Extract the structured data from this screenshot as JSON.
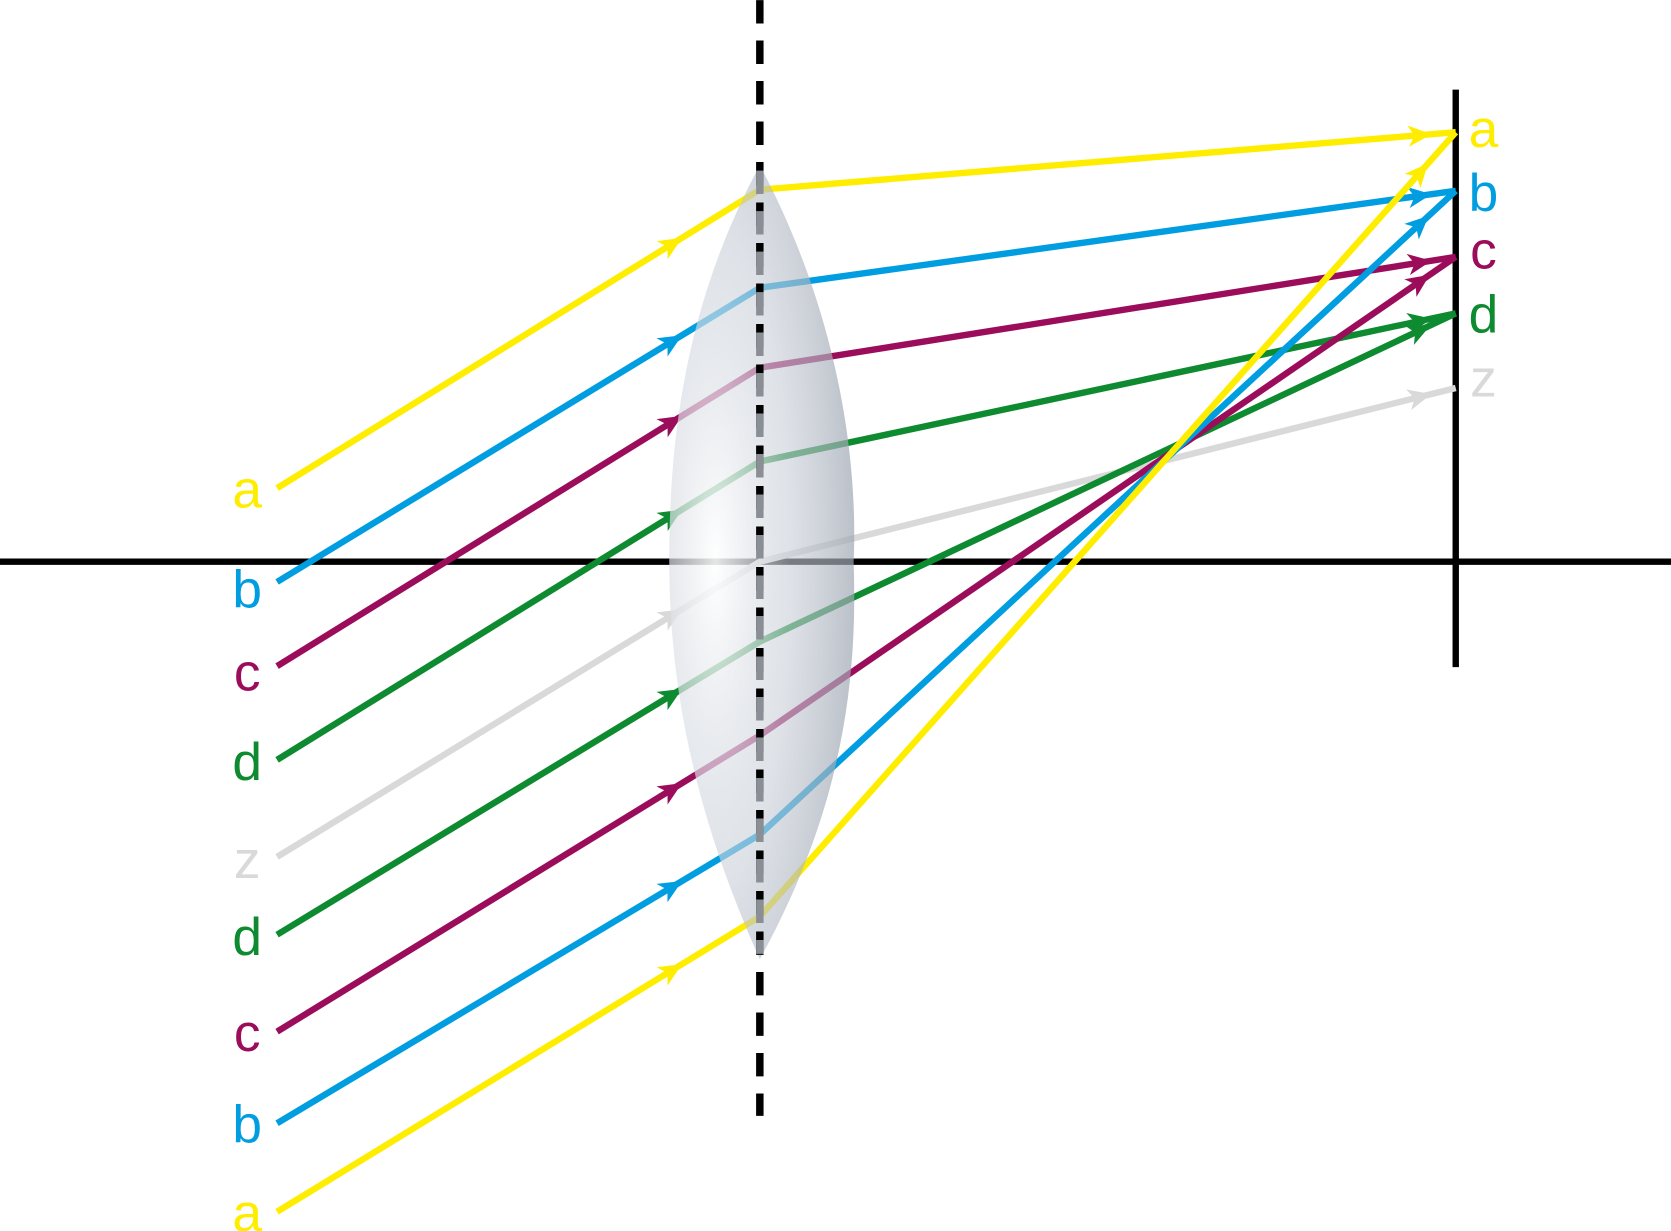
{
  "colors": {
    "a": "#FFED00",
    "b": "#009EE0",
    "c": "#9B0D5A",
    "d": "#0E8A30",
    "z": "#D9D9D9",
    "axis": "#000000"
  },
  "left_labels": [
    "a",
    "b",
    "c",
    "d",
    "z",
    "d",
    "c",
    "b",
    "a"
  ],
  "right_labels": [
    "a",
    "b",
    "c",
    "d",
    "z"
  ],
  "icons": {
    "lens": "convex-lens",
    "arrow": "ray-direction-arrow"
  }
}
